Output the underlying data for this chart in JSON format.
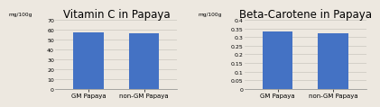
{
  "chart1": {
    "title": "Vitamin C in Papaya",
    "ylabel": "mg/100g",
    "categories": [
      "GM Papaya",
      "non-GM Papaya"
    ],
    "values": [
      57.5,
      56.0
    ],
    "ylim": [
      0,
      70
    ],
    "yticks": [
      0,
      10,
      20,
      30,
      40,
      50,
      60,
      70
    ],
    "bar_color": "#4472C4"
  },
  "chart2": {
    "title": "Beta-Carotene in Papaya",
    "ylabel": "mg/100g",
    "categories": [
      "GM Papaya",
      "non-GM Papaya"
    ],
    "values": [
      0.335,
      0.325
    ],
    "ylim": [
      0,
      0.4
    ],
    "yticks": [
      0,
      0.05,
      0.1,
      0.15,
      0.2,
      0.25,
      0.3,
      0.35,
      0.4
    ],
    "bar_color": "#4472C4"
  },
  "background_color": "#ede8e0",
  "title_fontsize": 8.5,
  "label_fontsize": 5.0,
  "tick_fontsize": 4.5,
  "ylabel_fontsize": 4.2,
  "grid_color": "#d0ccc4",
  "spine_color": "#888888"
}
